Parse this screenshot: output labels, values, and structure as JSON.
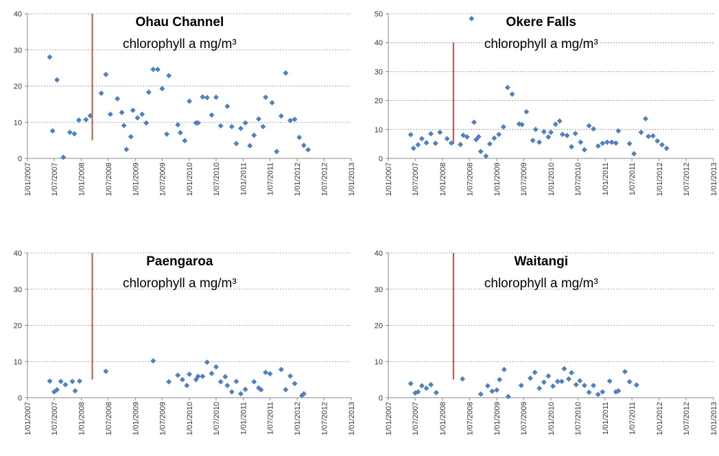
{
  "chart_data": [
    {
      "type": "scatter",
      "title": "Ohau Channel",
      "subtitle": "chlorophyll a mg/m³",
      "color": "#4f81bd",
      "grid": true,
      "xlim": [
        "2007-01-01",
        "2013-01-01"
      ],
      "xticks": [
        {
          "value": "2007-01-01",
          "label": "1/01/2007"
        },
        {
          "value": "2007-07-01",
          "label": "1/07/2007"
        },
        {
          "value": "2008-01-01",
          "label": "1/01/2008"
        },
        {
          "value": "2008-07-01",
          "label": "1/07/2008"
        },
        {
          "value": "2009-01-01",
          "label": "1/01/2009"
        },
        {
          "value": "2009-07-01",
          "label": "1/07/2009"
        },
        {
          "value": "2010-01-01",
          "label": "1/01/2010"
        },
        {
          "value": "2010-07-01",
          "label": "1/07/2010"
        },
        {
          "value": "2011-01-01",
          "label": "1/01/2011"
        },
        {
          "value": "2011-07-01",
          "label": "1/07/2011"
        },
        {
          "value": "2012-01-01",
          "label": "1/01/2012"
        },
        {
          "value": "2012-07-01",
          "label": "1/07/2012"
        },
        {
          "value": "2013-01-01",
          "label": "1/01/2013"
        }
      ],
      "ylim": [
        0,
        40
      ],
      "yticks": [
        0,
        10,
        20,
        30,
        40
      ],
      "marker_line": {
        "x": "2008-03-15",
        "y": [
          5,
          40
        ],
        "color": "#c0504d"
      },
      "x": [
        "2007-06-01",
        "2007-06-20",
        "2007-07-20",
        "2007-09-01",
        "2007-10-15",
        "2007-11-15",
        "2007-12-15",
        "2008-02-01",
        "2008-03-01",
        "2008-05-15",
        "2008-06-15",
        "2008-07-15",
        "2008-09-01",
        "2008-10-01",
        "2008-10-15",
        "2008-11-01",
        "2008-12-01",
        "2008-12-15",
        "2009-01-15",
        "2009-02-15",
        "2009-03-15",
        "2009-04-01",
        "2009-05-01",
        "2009-06-01",
        "2009-07-01",
        "2009-08-01",
        "2009-08-15",
        "2009-10-15",
        "2009-11-01",
        "2009-12-01",
        "2010-01-01",
        "2010-02-15",
        "2010-03-01",
        "2010-04-01",
        "2010-05-01",
        "2010-06-01",
        "2010-07-01",
        "2010-08-01",
        "2010-09-15",
        "2010-10-15",
        "2010-11-15",
        "2010-12-15",
        "2011-01-15",
        "2011-02-15",
        "2011-03-15",
        "2011-04-15",
        "2011-05-15",
        "2011-06-01",
        "2011-07-15",
        "2011-08-15",
        "2011-09-15",
        "2011-10-15",
        "2011-11-15",
        "2011-12-15",
        "2012-01-15",
        "2012-02-15",
        "2012-03-15"
      ],
      "values": [
        28,
        7.6,
        21.7,
        0.3,
        7.2,
        6.8,
        10.6,
        10.7,
        11.8,
        18,
        23.2,
        12.2,
        16.5,
        12.7,
        9.1,
        2.5,
        6,
        13.3,
        11.2,
        12.2,
        9.8,
        18.3,
        24.6,
        24.6,
        19.3,
        6.7,
        22.9,
        9.3,
        7.1,
        4.9,
        15.8,
        9.8,
        9.8,
        17,
        16.8,
        12,
        16.9,
        9,
        14.4,
        8.8,
        4.1,
        8.3,
        9.8,
        3.5,
        6.4,
        10.9,
        8.8,
        16.9,
        15.4,
        1.9,
        11.7,
        23.6,
        10.5,
        10.8,
        5.8,
        3.6,
        2.4
      ]
    },
    {
      "type": "scatter",
      "title": "Okere Falls",
      "subtitle": "chlorophyll a mg/m³",
      "color": "#4f81bd",
      "grid": true,
      "xlim": [
        "2007-01-01",
        "2013-01-01"
      ],
      "xticks": [
        {
          "value": "2007-01-01",
          "label": "1/01/2007"
        },
        {
          "value": "2007-07-01",
          "label": "1/07/2007"
        },
        {
          "value": "2008-01-01",
          "label": "1/01/2008"
        },
        {
          "value": "2008-07-01",
          "label": "1/07/2008"
        },
        {
          "value": "2009-01-01",
          "label": "1/01/2009"
        },
        {
          "value": "2009-07-01",
          "label": "1/07/2009"
        },
        {
          "value": "2010-01-01",
          "label": "1/01/2010"
        },
        {
          "value": "2010-07-01",
          "label": "1/07/2010"
        },
        {
          "value": "2011-01-01",
          "label": "1/01/2011"
        },
        {
          "value": "2011-07-01",
          "label": "1/07/2011"
        },
        {
          "value": "2012-01-01",
          "label": "1/01/2012"
        },
        {
          "value": "2012-07-01",
          "label": "1/07/2012"
        },
        {
          "value": "2013-01-01",
          "label": "1/01/2013"
        }
      ],
      "ylim": [
        0,
        50
      ],
      "yticks": [
        0,
        10,
        20,
        30,
        40,
        50
      ],
      "marker_line": {
        "x": "2008-03-15",
        "y": [
          5,
          40
        ],
        "color": "#c0504d"
      },
      "x": [
        "2007-06-01",
        "2007-06-20",
        "2007-07-20",
        "2007-08-15",
        "2007-09-15",
        "2007-10-15",
        "2007-11-15",
        "2007-12-15",
        "2008-02-01",
        "2008-03-01",
        "2008-05-01",
        "2008-05-20",
        "2008-06-15",
        "2008-07-15",
        "2008-08-01",
        "2008-08-15",
        "2008-09-01",
        "2008-09-15",
        "2008-10-20",
        "2008-11-15",
        "2008-12-15",
        "2009-01-15",
        "2009-02-15",
        "2009-03-15",
        "2009-04-15",
        "2009-06-01",
        "2009-06-20",
        "2009-07-20",
        "2009-09-01",
        "2009-09-20",
        "2009-10-15",
        "2009-11-15",
        "2009-12-15",
        "2010-01-01",
        "2010-02-01",
        "2010-03-01",
        "2010-03-20",
        "2010-04-20",
        "2010-05-20",
        "2010-06-15",
        "2010-07-20",
        "2010-08-15",
        "2010-09-15",
        "2010-10-15",
        "2010-11-15",
        "2010-12-15",
        "2011-01-15",
        "2011-02-15",
        "2011-03-15",
        "2011-04-01",
        "2011-06-15",
        "2011-07-15",
        "2011-09-01",
        "2011-10-01",
        "2011-10-20",
        "2011-11-20",
        "2011-12-20",
        "2012-01-20",
        "2012-02-20"
      ],
      "values": [
        8.2,
        3.5,
        4.7,
        6.8,
        5.4,
        8.5,
        5.2,
        9,
        6.8,
        5.3,
        4.8,
        8,
        7.4,
        48.3,
        12.5,
        6.5,
        7.5,
        2.4,
        0.8,
        5,
        7,
        8.3,
        10.9,
        24.5,
        22.2,
        11.9,
        11.7,
        16.1,
        6.2,
        10,
        5.6,
        9.2,
        7.4,
        9,
        11.8,
        12.9,
        8.3,
        7.9,
        4,
        8.6,
        5.6,
        3,
        11.3,
        10.2,
        4.3,
        5.2,
        5.6,
        5.6,
        5.3,
        9.5,
        5.1,
        1.6,
        9,
        13.7,
        7.6,
        7.8,
        6,
        4.7,
        3.5
      ]
    },
    {
      "type": "scatter",
      "title": "Paengaroa",
      "subtitle": "chlorophyll a mg/m³",
      "color": "#4f81bd",
      "grid": true,
      "xlim": [
        "2007-01-01",
        "2013-01-01"
      ],
      "xticks": [
        {
          "value": "2007-01-01",
          "label": "1/01/2007"
        },
        {
          "value": "2007-07-01",
          "label": "1/07/2007"
        },
        {
          "value": "2008-01-01",
          "label": "1/01/2008"
        },
        {
          "value": "2008-07-01",
          "label": "1/07/2008"
        },
        {
          "value": "2009-01-01",
          "label": "1/01/2009"
        },
        {
          "value": "2009-07-01",
          "label": "1/07/2009"
        },
        {
          "value": "2010-01-01",
          "label": "1/01/2010"
        },
        {
          "value": "2010-07-01",
          "label": "1/07/2010"
        },
        {
          "value": "2011-01-01",
          "label": "1/01/2011"
        },
        {
          "value": "2011-07-01",
          "label": "1/07/2011"
        },
        {
          "value": "2012-01-01",
          "label": "1/01/2012"
        },
        {
          "value": "2012-07-01",
          "label": "1/07/2012"
        },
        {
          "value": "2013-01-01",
          "label": "1/01/2013"
        }
      ],
      "ylim": [
        0,
        40
      ],
      "yticks": [
        0,
        10,
        20,
        30,
        40
      ],
      "marker_line": {
        "x": "2008-03-15",
        "y": [
          5,
          40
        ],
        "color": "#c0504d"
      },
      "x": [
        "2007-06-01",
        "2007-07-01",
        "2007-07-20",
        "2007-08-15",
        "2007-09-15",
        "2007-11-01",
        "2007-11-20",
        "2007-12-20",
        "2008-06-15",
        "2009-05-01",
        "2009-08-15",
        "2009-10-15",
        "2009-11-15",
        "2009-12-15",
        "2010-01-01",
        "2010-02-15",
        "2010-03-01",
        "2010-04-01",
        "2010-05-01",
        "2010-06-01",
        "2010-07-01",
        "2010-08-01",
        "2010-09-01",
        "2010-09-15",
        "2010-10-15",
        "2010-11-15",
        "2010-12-15",
        "2011-01-15",
        "2011-03-15",
        "2011-04-15",
        "2011-05-01",
        "2011-06-01",
        "2011-07-01",
        "2011-09-15",
        "2011-10-15",
        "2011-11-15",
        "2011-12-15",
        "2012-02-01",
        "2012-02-15"
      ],
      "values": [
        4.6,
        1.6,
        2.2,
        4.5,
        3.6,
        4.5,
        1.9,
        4.6,
        7.3,
        10.2,
        4.4,
        6.2,
        5,
        3.4,
        6.5,
        5,
        5.9,
        5.9,
        9.8,
        6.7,
        8.5,
        4.4,
        5.8,
        3.4,
        1.6,
        4.5,
        1.1,
        2.3,
        4.4,
        2.7,
        2.2,
        7,
        6.6,
        7.8,
        2.2,
        6,
        3.9,
        0.6,
        1.1
      ]
    },
    {
      "type": "scatter",
      "title": "Waitangi",
      "subtitle": "chlorophyll a mg/m³",
      "color": "#4f81bd",
      "grid": true,
      "xlim": [
        "2007-01-01",
        "2013-01-01"
      ],
      "xticks": [
        {
          "value": "2007-01-01",
          "label": "1/01/2007"
        },
        {
          "value": "2007-07-01",
          "label": "1/07/2007"
        },
        {
          "value": "2008-01-01",
          "label": "1/01/2008"
        },
        {
          "value": "2008-07-01",
          "label": "1/07/2008"
        },
        {
          "value": "2009-01-01",
          "label": "1/01/2009"
        },
        {
          "value": "2009-07-01",
          "label": "1/07/2009"
        },
        {
          "value": "2010-01-01",
          "label": "1/01/2010"
        },
        {
          "value": "2010-07-01",
          "label": "1/07/2010"
        },
        {
          "value": "2011-01-01",
          "label": "1/01/2011"
        },
        {
          "value": "2011-07-01",
          "label": "1/07/2011"
        },
        {
          "value": "2012-01-01",
          "label": "1/01/2012"
        },
        {
          "value": "2012-07-01",
          "label": "1/07/2012"
        },
        {
          "value": "2013-01-01",
          "label": "1/01/2013"
        }
      ],
      "ylim": [
        0,
        40
      ],
      "yticks": [
        0,
        10,
        20,
        30,
        40
      ],
      "marker_line": {
        "x": "2008-03-15",
        "y": [
          5,
          40
        ],
        "color": "#c0504d"
      },
      "x": [
        "2007-06-01",
        "2007-07-01",
        "2007-07-20",
        "2007-08-15",
        "2007-09-15",
        "2007-10-15",
        "2007-11-20",
        "2008-05-15",
        "2008-09-15",
        "2008-11-01",
        "2008-12-01",
        "2009-01-01",
        "2009-01-20",
        "2009-02-20",
        "2009-03-20",
        "2009-06-15",
        "2009-08-15",
        "2009-09-15",
        "2009-10-15",
        "2009-11-15",
        "2009-12-15",
        "2010-01-15",
        "2010-02-15",
        "2010-03-15",
        "2010-04-01",
        "2010-05-01",
        "2010-05-20",
        "2010-06-20",
        "2010-07-15",
        "2010-08-15",
        "2010-09-15",
        "2010-10-15",
        "2010-11-15",
        "2010-12-15",
        "2011-02-01",
        "2011-03-15",
        "2011-04-01",
        "2011-05-15",
        "2011-06-15",
        "2011-08-01"
      ],
      "values": [
        3.9,
        1.3,
        1.6,
        3.3,
        2.6,
        3.6,
        1.4,
        5.2,
        1,
        3.3,
        1.8,
        2.1,
        5,
        7.8,
        0.3,
        3.4,
        5.4,
        7,
        2.6,
        4.3,
        6,
        3.2,
        4.5,
        4.5,
        8,
        5.2,
        6.9,
        3.6,
        4.7,
        3.4,
        1.5,
        3.4,
        0.9,
        1.6,
        4.6,
        1.6,
        1.9,
        7.2,
        4.4,
        3.5
      ]
    }
  ]
}
